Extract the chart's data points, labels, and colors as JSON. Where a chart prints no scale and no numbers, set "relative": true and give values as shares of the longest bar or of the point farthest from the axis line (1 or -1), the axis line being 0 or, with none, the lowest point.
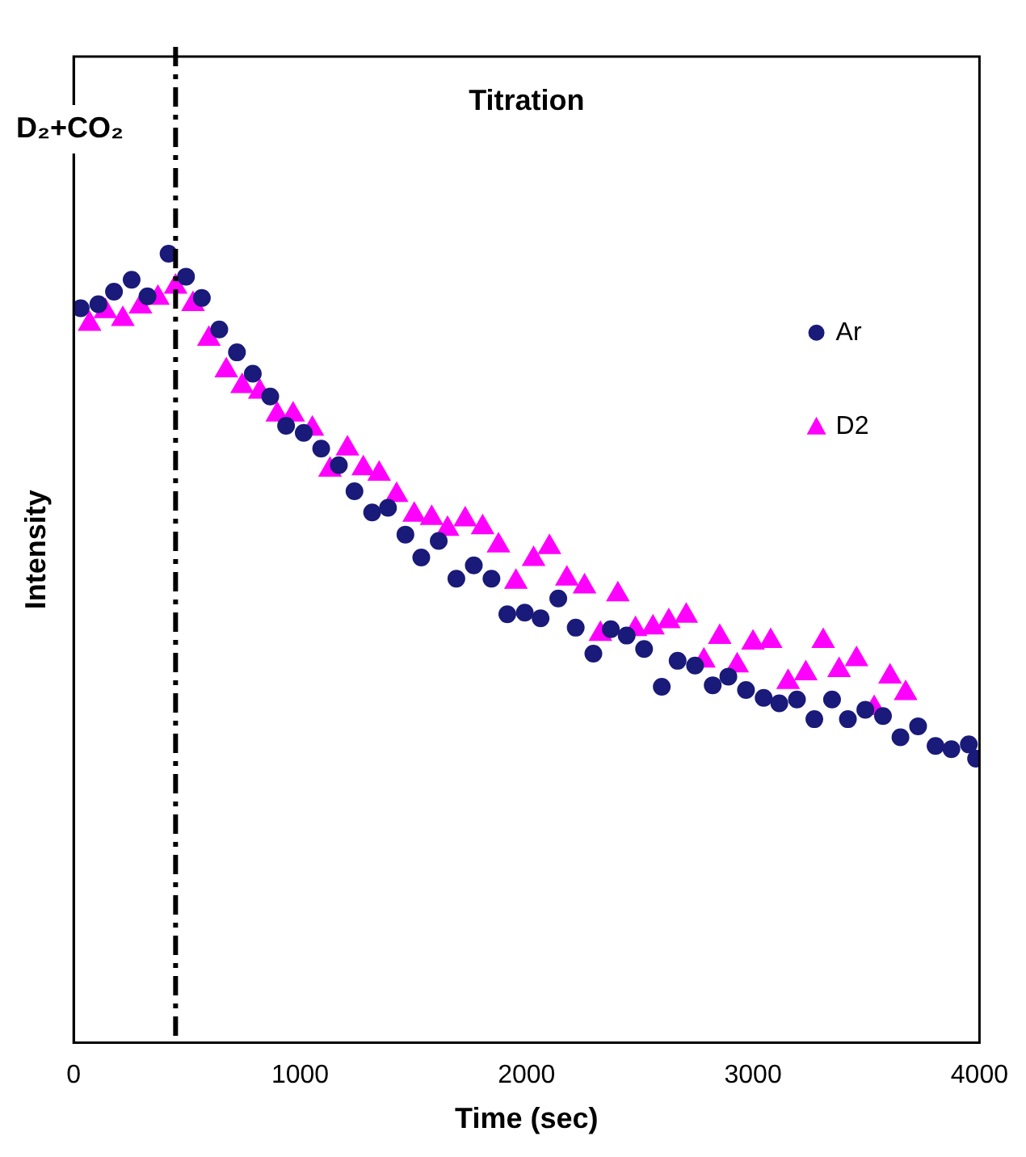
{
  "chart_data": {
    "type": "scatter",
    "xlabel": "Time (sec)",
    "ylabel": "Intensity",
    "relative": true,
    "xlim": [
      0,
      4000
    ],
    "xticks": [
      0,
      1000,
      2000,
      3000,
      4000
    ],
    "grid": false,
    "legend": "right",
    "annotations": [
      "D₂+CO₂",
      "Titration"
    ],
    "ref_lines": [
      {
        "axis": "x",
        "value": 450,
        "color": "#000000",
        "line_style": "dashed"
      }
    ],
    "series": [
      {
        "name": "Ar",
        "color": "#1a1a7a",
        "marker": "circle",
        "x": [
          31,
          109,
          178,
          256,
          326,
          419,
          496,
          566,
          643,
          721,
          791,
          868,
          938,
          1016,
          1093,
          1171,
          1240,
          1318,
          1388,
          1465,
          1535,
          1612,
          1690,
          1767,
          1845,
          1915,
          1992,
          2062,
          2140,
          2217,
          2295,
          2372,
          2442,
          2519,
          2597,
          2667,
          2744,
          2822,
          2891,
          2969,
          3047,
          3116,
          3194,
          3271,
          3349,
          3419,
          3496,
          3574,
          3651,
          3729,
          3806,
          3876,
          3953,
          3985
        ],
        "values": [
          0.931,
          0.936,
          0.952,
          0.967,
          0.946,
          1,
          0.971,
          0.944,
          0.904,
          0.875,
          0.848,
          0.819,
          0.782,
          0.773,
          0.753,
          0.732,
          0.699,
          0.672,
          0.678,
          0.644,
          0.615,
          0.636,
          0.588,
          0.605,
          0.588,
          0.543,
          0.545,
          0.538,
          0.563,
          0.526,
          0.493,
          0.524,
          0.516,
          0.499,
          0.451,
          0.484,
          0.478,
          0.453,
          0.464,
          0.447,
          0.437,
          0.43,
          0.435,
          0.41,
          0.435,
          0.41,
          0.422,
          0.414,
          0.387,
          0.401,
          0.376,
          0.372,
          0.378,
          0.36
        ]
      },
      {
        "name": "D2",
        "color": "#ff00ff",
        "marker": "triangle",
        "x": [
          70,
          140,
          217,
          295,
          372,
          450,
          527,
          597,
          674,
          744,
          822,
          899,
          969,
          1054,
          1132,
          1209,
          1279,
          1349,
          1426,
          1504,
          1581,
          1651,
          1729,
          1806,
          1876,
          1953,
          2031,
          2101,
          2178,
          2256,
          2326,
          2403,
          2481,
          2558,
          2628,
          2705,
          2783,
          2853,
          2930,
          3000,
          3078,
          3155,
          3233,
          3310,
          3380,
          3457,
          3535,
          3605,
          3674
        ],
        "values": [
          0.911,
          0.927,
          0.917,
          0.933,
          0.944,
          0.958,
          0.936,
          0.892,
          0.852,
          0.832,
          0.825,
          0.796,
          0.796,
          0.778,
          0.726,
          0.753,
          0.728,
          0.721,
          0.694,
          0.669,
          0.665,
          0.651,
          0.663,
          0.653,
          0.63,
          0.584,
          0.613,
          0.628,
          0.588,
          0.578,
          0.518,
          0.568,
          0.524,
          0.526,
          0.534,
          0.541,
          0.484,
          0.514,
          0.478,
          0.507,
          0.509,
          0.457,
          0.468,
          0.509,
          0.472,
          0.486,
          0.424,
          0.464,
          0.443
        ]
      }
    ]
  }
}
